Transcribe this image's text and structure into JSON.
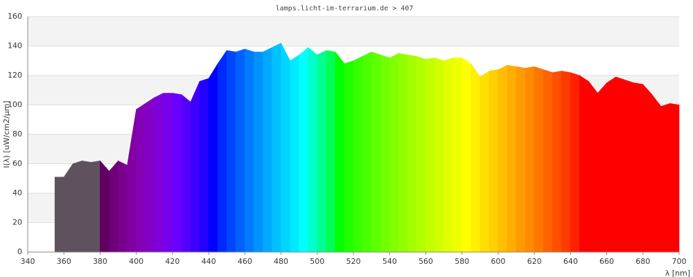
{
  "chart_data": {
    "type": "area",
    "title": "lamps.licht-im-terrarium.de > 407",
    "x_label": "λ [nm]",
    "y_label": "I(λ)  [uW/cm2/µm]",
    "x": [
      355,
      360,
      365,
      370,
      375,
      380,
      385,
      390,
      395,
      400,
      405,
      410,
      415,
      420,
      425,
      430,
      435,
      440,
      445,
      450,
      455,
      460,
      465,
      470,
      475,
      480,
      485,
      490,
      495,
      500,
      505,
      510,
      515,
      520,
      525,
      530,
      535,
      540,
      545,
      550,
      555,
      560,
      565,
      570,
      575,
      580,
      585,
      590,
      595,
      600,
      605,
      610,
      615,
      620,
      625,
      630,
      635,
      640,
      645,
      650,
      655,
      660,
      665,
      670,
      675,
      680,
      685,
      690,
      695,
      700
    ],
    "values": [
      51,
      51,
      60,
      62,
      61,
      62,
      55,
      62,
      59,
      97,
      101,
      105,
      108,
      108,
      107,
      102,
      116,
      118,
      128,
      137,
      136,
      138,
      136,
      136,
      139,
      142,
      130,
      134,
      139,
      134,
      137,
      136,
      128,
      130,
      133,
      136,
      134,
      132,
      135,
      134,
      133,
      131,
      132,
      130,
      132,
      132,
      128,
      119,
      123,
      124,
      127,
      126,
      125,
      126,
      124,
      122,
      123,
      122,
      120,
      116,
      108,
      115,
      119,
      117,
      115,
      114,
      107,
      99,
      101,
      100
    ],
    "xlim": [
      340,
      700
    ],
    "ylim": [
      0,
      160
    ],
    "xticks": [
      340,
      360,
      380,
      400,
      420,
      440,
      460,
      480,
      500,
      520,
      540,
      560,
      580,
      600,
      620,
      640,
      660,
      680,
      700
    ],
    "yticks": [
      0,
      20,
      40,
      60,
      80,
      100,
      120,
      140,
      160
    ],
    "grid": true
  }
}
